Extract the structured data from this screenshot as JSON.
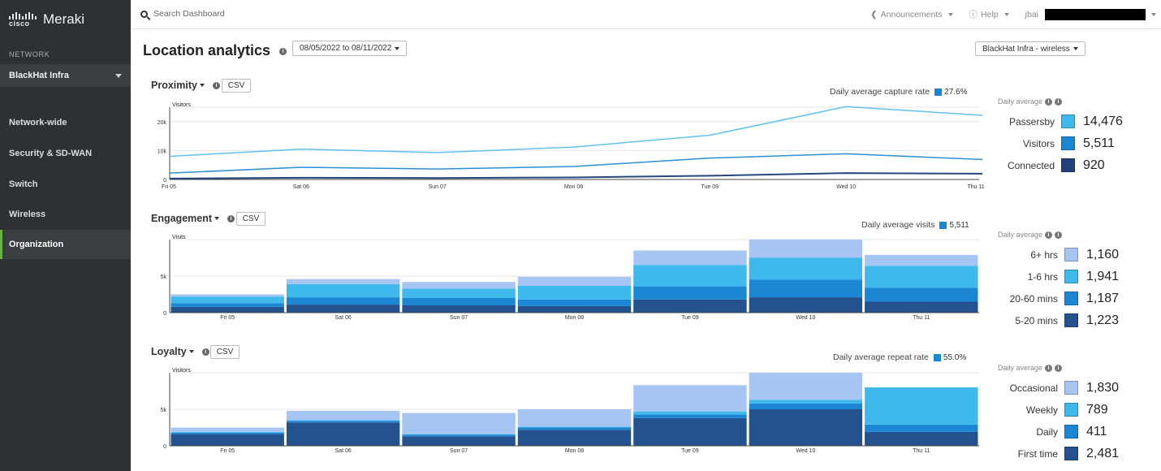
{
  "sidebar": {
    "logo_cisco": "cisco",
    "logo_text": "Meraki",
    "section_label": "NETWORK",
    "network_name": "BlackHat Infra",
    "items": [
      {
        "label": "Network-wide"
      },
      {
        "label": "Security & SD-WAN"
      },
      {
        "label": "Switch"
      },
      {
        "label": "Wireless"
      },
      {
        "label": "Organization"
      }
    ],
    "active_item": "Organization",
    "active_accent": "#67b346"
  },
  "topbar": {
    "search_placeholder": "Search Dashboard",
    "announcements": "Announcements",
    "help": "Help",
    "user": "jbai"
  },
  "page": {
    "title": "Location analytics",
    "date_range": "08/05/2022 to 08/11/2022",
    "network_selector": "BlackHat Infra - wireless",
    "csv_label": "CSV",
    "daily_average_label": "Daily average"
  },
  "proximity": {
    "title": "Proximity",
    "avg_label": "Daily average capture rate",
    "avg_value": "27.6%",
    "y_label": "Visitors",
    "legend": [
      {
        "name": "Passersby",
        "value": "14,476",
        "color": "#3fb8ec"
      },
      {
        "name": "Visitors",
        "value": "5,511",
        "color": "#1b86d4"
      },
      {
        "name": "Connected",
        "value": "920",
        "color": "#243f7a"
      }
    ]
  },
  "engagement": {
    "title": "Engagement",
    "avg_label": "Daily average visits",
    "avg_value": "5,511",
    "y_label": "Visits",
    "legend": [
      {
        "name": "6+ hrs",
        "value": "1,160",
        "color": "#a7c5f2"
      },
      {
        "name": "1-6 hrs",
        "value": "1,941",
        "color": "#3fb8ec"
      },
      {
        "name": "20-60 mins",
        "value": "1,187",
        "color": "#1b86d4"
      },
      {
        "name": "5-20 mins",
        "value": "1,223",
        "color": "#24528f"
      }
    ]
  },
  "loyalty": {
    "title": "Loyalty",
    "avg_label": "Daily average repeat rate",
    "avg_value": "55.0%",
    "y_label": "Visitors",
    "legend": [
      {
        "name": "Occasional",
        "value": "1,830",
        "color": "#a7c5f2"
      },
      {
        "name": "Weekly",
        "value": "789",
        "color": "#3fb8ec"
      },
      {
        "name": "Daily",
        "value": "411",
        "color": "#1b86d4"
      },
      {
        "name": "First time",
        "value": "2,481",
        "color": "#24528f"
      }
    ]
  },
  "chart_data": [
    {
      "type": "line",
      "title": "Proximity",
      "ylabel": "Visitors",
      "categories": [
        "Fri 05",
        "Sat 06",
        "Sun 07",
        "Mon 08",
        "Tue 09",
        "Wed 10",
        "Thu 11"
      ],
      "ylim": [
        0,
        25000
      ],
      "yticks": [
        {
          "v": 0,
          "label": "0"
        },
        {
          "v": 10000,
          "label": "10k"
        },
        {
          "v": 20000,
          "label": "20k"
        }
      ],
      "series": [
        {
          "name": "Passersby",
          "color": "#5fc2ee",
          "values": [
            8000,
            10500,
            9300,
            11200,
            15300,
            25200,
            22200
          ]
        },
        {
          "name": "Visitors",
          "color": "#2b8fd6",
          "values": [
            2200,
            4200,
            3600,
            4500,
            7400,
            8900,
            6900
          ]
        },
        {
          "name": "Connected",
          "color": "#24477f",
          "values": [
            300,
            600,
            500,
            700,
            1300,
            2200,
            2000
          ]
        }
      ]
    },
    {
      "type": "bar",
      "stacked": true,
      "title": "Engagement",
      "ylabel": "Visits",
      "categories": [
        "Fri 05",
        "Sat 06",
        "Sun 07",
        "Mon 08",
        "Tue 09",
        "Wed 10",
        "Thu 11"
      ],
      "ylim": [
        0,
        10000
      ],
      "yticks": [
        {
          "v": 0,
          "label": "0"
        },
        {
          "v": 5000,
          "label": "5k"
        }
      ],
      "series": [
        {
          "name": "5-20 mins",
          "color": "#24528f",
          "values": [
            800,
            1100,
            1000,
            900,
            1800,
            2100,
            1500
          ]
        },
        {
          "name": "20-60 mins",
          "color": "#1b86d4",
          "values": [
            500,
            1000,
            1000,
            900,
            1800,
            2400,
            1900
          ]
        },
        {
          "name": "1-6 hrs",
          "color": "#3fb8ec",
          "values": [
            900,
            1800,
            1300,
            1900,
            2900,
            3000,
            3000
          ]
        },
        {
          "name": "6+ hrs",
          "color": "#a7c5f2",
          "values": [
            300,
            700,
            900,
            1200,
            2000,
            2500,
            1500
          ]
        }
      ]
    },
    {
      "type": "bar",
      "stacked": true,
      "title": "Loyalty",
      "ylabel": "Visitors",
      "categories": [
        "Fri 05",
        "Sat 06",
        "Sun 07",
        "Mon 08",
        "Tue 09",
        "Wed 10",
        "Thu 11"
      ],
      "ylim": [
        0,
        10000
      ],
      "yticks": [
        {
          "v": 0,
          "label": "0"
        },
        {
          "v": 5000,
          "label": "5k"
        }
      ],
      "series": [
        {
          "name": "First time",
          "color": "#24528f",
          "values": [
            1600,
            3200,
            1300,
            2200,
            3800,
            5000,
            1900
          ]
        },
        {
          "name": "Daily",
          "color": "#1b86d4",
          "values": [
            200,
            200,
            200,
            300,
            500,
            800,
            1000
          ]
        },
        {
          "name": "Weekly",
          "color": "#3fb8ec",
          "values": [
            100,
            100,
            100,
            100,
            400,
            500,
            5100
          ]
        },
        {
          "name": "Occasional",
          "color": "#a7c5f2",
          "values": [
            600,
            1300,
            2900,
            2400,
            3600,
            3700,
            0
          ]
        }
      ]
    }
  ]
}
